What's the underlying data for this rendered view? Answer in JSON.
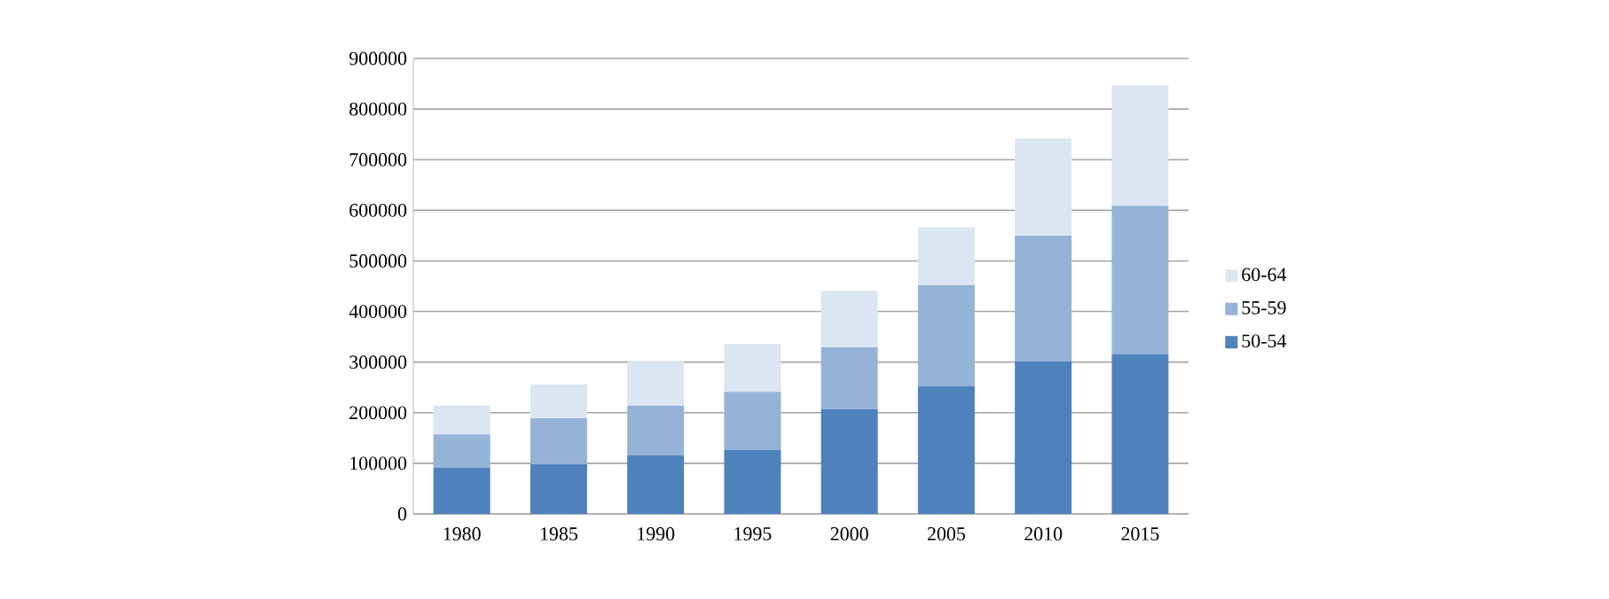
{
  "chart_data": {
    "type": "bar",
    "stacked": true,
    "categories": [
      "1980",
      "1985",
      "1990",
      "1995",
      "2000",
      "2005",
      "2010",
      "2015"
    ],
    "series": [
      {
        "name": "50-54",
        "color": "#4f81bd",
        "values": [
          91000,
          98000,
          116000,
          126000,
          207000,
          252000,
          301000,
          315000
        ]
      },
      {
        "name": "55-59",
        "color": "#95b3d7",
        "values": [
          66000,
          91000,
          98000,
          115000,
          122000,
          200000,
          249000,
          294000
        ]
      },
      {
        "name": "60-64",
        "color": "#dce6f2",
        "values": [
          57000,
          67000,
          87000,
          95000,
          112000,
          115000,
          192000,
          238000
        ]
      }
    ],
    "ylim": [
      0,
      900000
    ],
    "yticks": [
      0,
      100000,
      200000,
      300000,
      400000,
      500000,
      600000,
      700000,
      800000,
      900000
    ],
    "grid": "y",
    "legend": "right"
  }
}
